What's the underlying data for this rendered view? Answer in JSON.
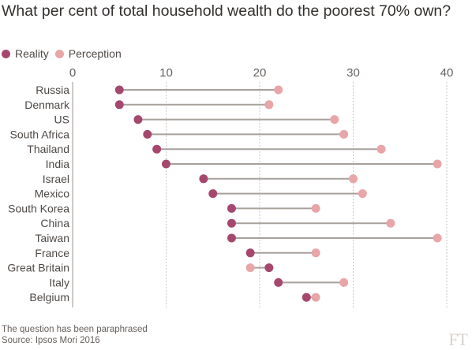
{
  "title": "What per cent of total household wealth do the poorest 70% own?",
  "legend": {
    "reality": "Reality",
    "perception": "Perception"
  },
  "colors": {
    "reality": "#a6486e",
    "perception": "#e8a6a8",
    "connector": "#a7a19c",
    "grid": "#cec6c0"
  },
  "chart_data": {
    "type": "dot-plot",
    "x_ticks": [
      0,
      10,
      20,
      30,
      40
    ],
    "xlim": [
      0,
      40
    ],
    "categories": [
      "Russia",
      "Denmark",
      "US",
      "South Africa",
      "Thailand",
      "India",
      "Israel",
      "Mexico",
      "South Korea",
      "China",
      "Taiwan",
      "France",
      "Great Britain",
      "Italy",
      "Belgium"
    ],
    "series": [
      {
        "name": "Reality",
        "values": [
          5,
          5,
          7,
          8,
          9,
          10,
          14,
          15,
          17,
          17,
          17,
          19,
          21,
          22,
          25
        ]
      },
      {
        "name": "Perception",
        "values": [
          22,
          21,
          28,
          29,
          33,
          39,
          30,
          31,
          26,
          34,
          39,
          26,
          19,
          29,
          26
        ]
      }
    ]
  },
  "footer": {
    "note": "The question has been paraphrased",
    "source": "Source: Ipsos Mori 2016"
  },
  "brand": "FT"
}
